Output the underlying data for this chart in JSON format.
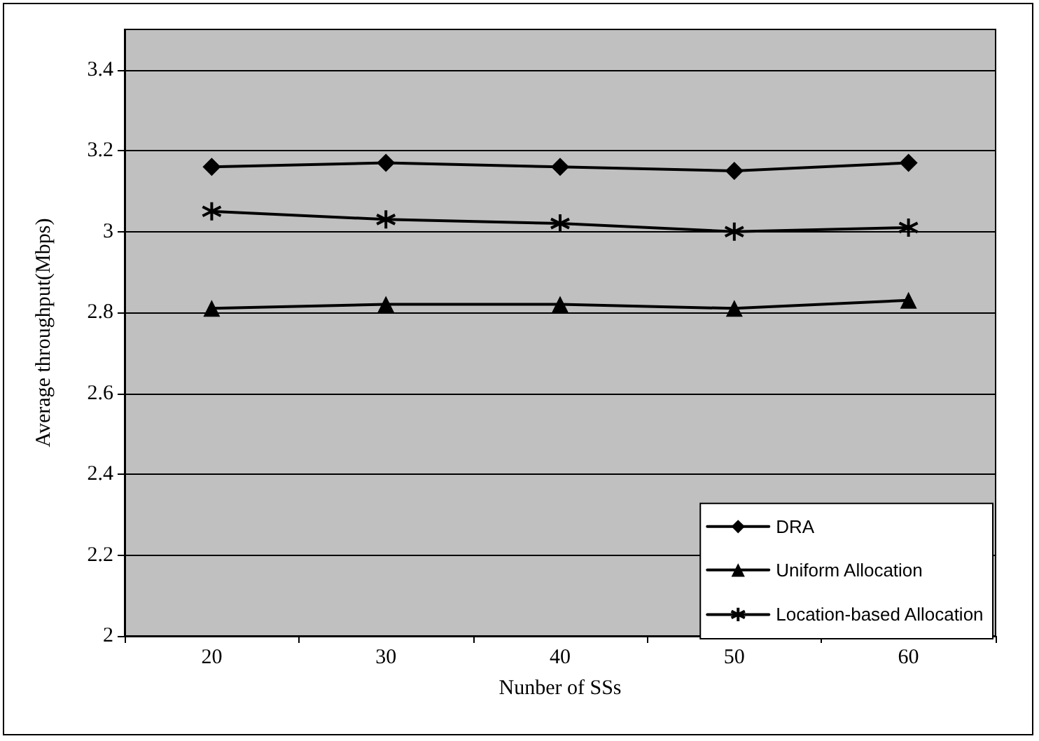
{
  "chart_data": {
    "type": "line",
    "xlabel": "Nunber of SSs",
    "ylabel": "Average throughput(Mbps)",
    "categories": [
      "20",
      "30",
      "40",
      "50",
      "60"
    ],
    "series": [
      {
        "name": "DRA",
        "color": "#000000",
        "marker": "diamond",
        "values": [
          3.16,
          3.17,
          3.16,
          3.15,
          3.17
        ]
      },
      {
        "name": "Uniform Allocation",
        "color": "#000000",
        "marker": "triangle",
        "values": [
          2.81,
          2.82,
          2.82,
          2.81,
          2.83
        ]
      },
      {
        "name": "Location-based Allocation",
        "color": "#000000",
        "marker": "cross",
        "values": [
          3.05,
          3.03,
          3.02,
          3.0,
          3.01
        ]
      }
    ],
    "ylim": [
      2,
      3.5
    ],
    "yticks": [
      2,
      2.2,
      2.4,
      2.6,
      2.8,
      3,
      3.2,
      3.4
    ],
    "grid": "y",
    "legend": "bottom right",
    "line_style": "solid"
  }
}
